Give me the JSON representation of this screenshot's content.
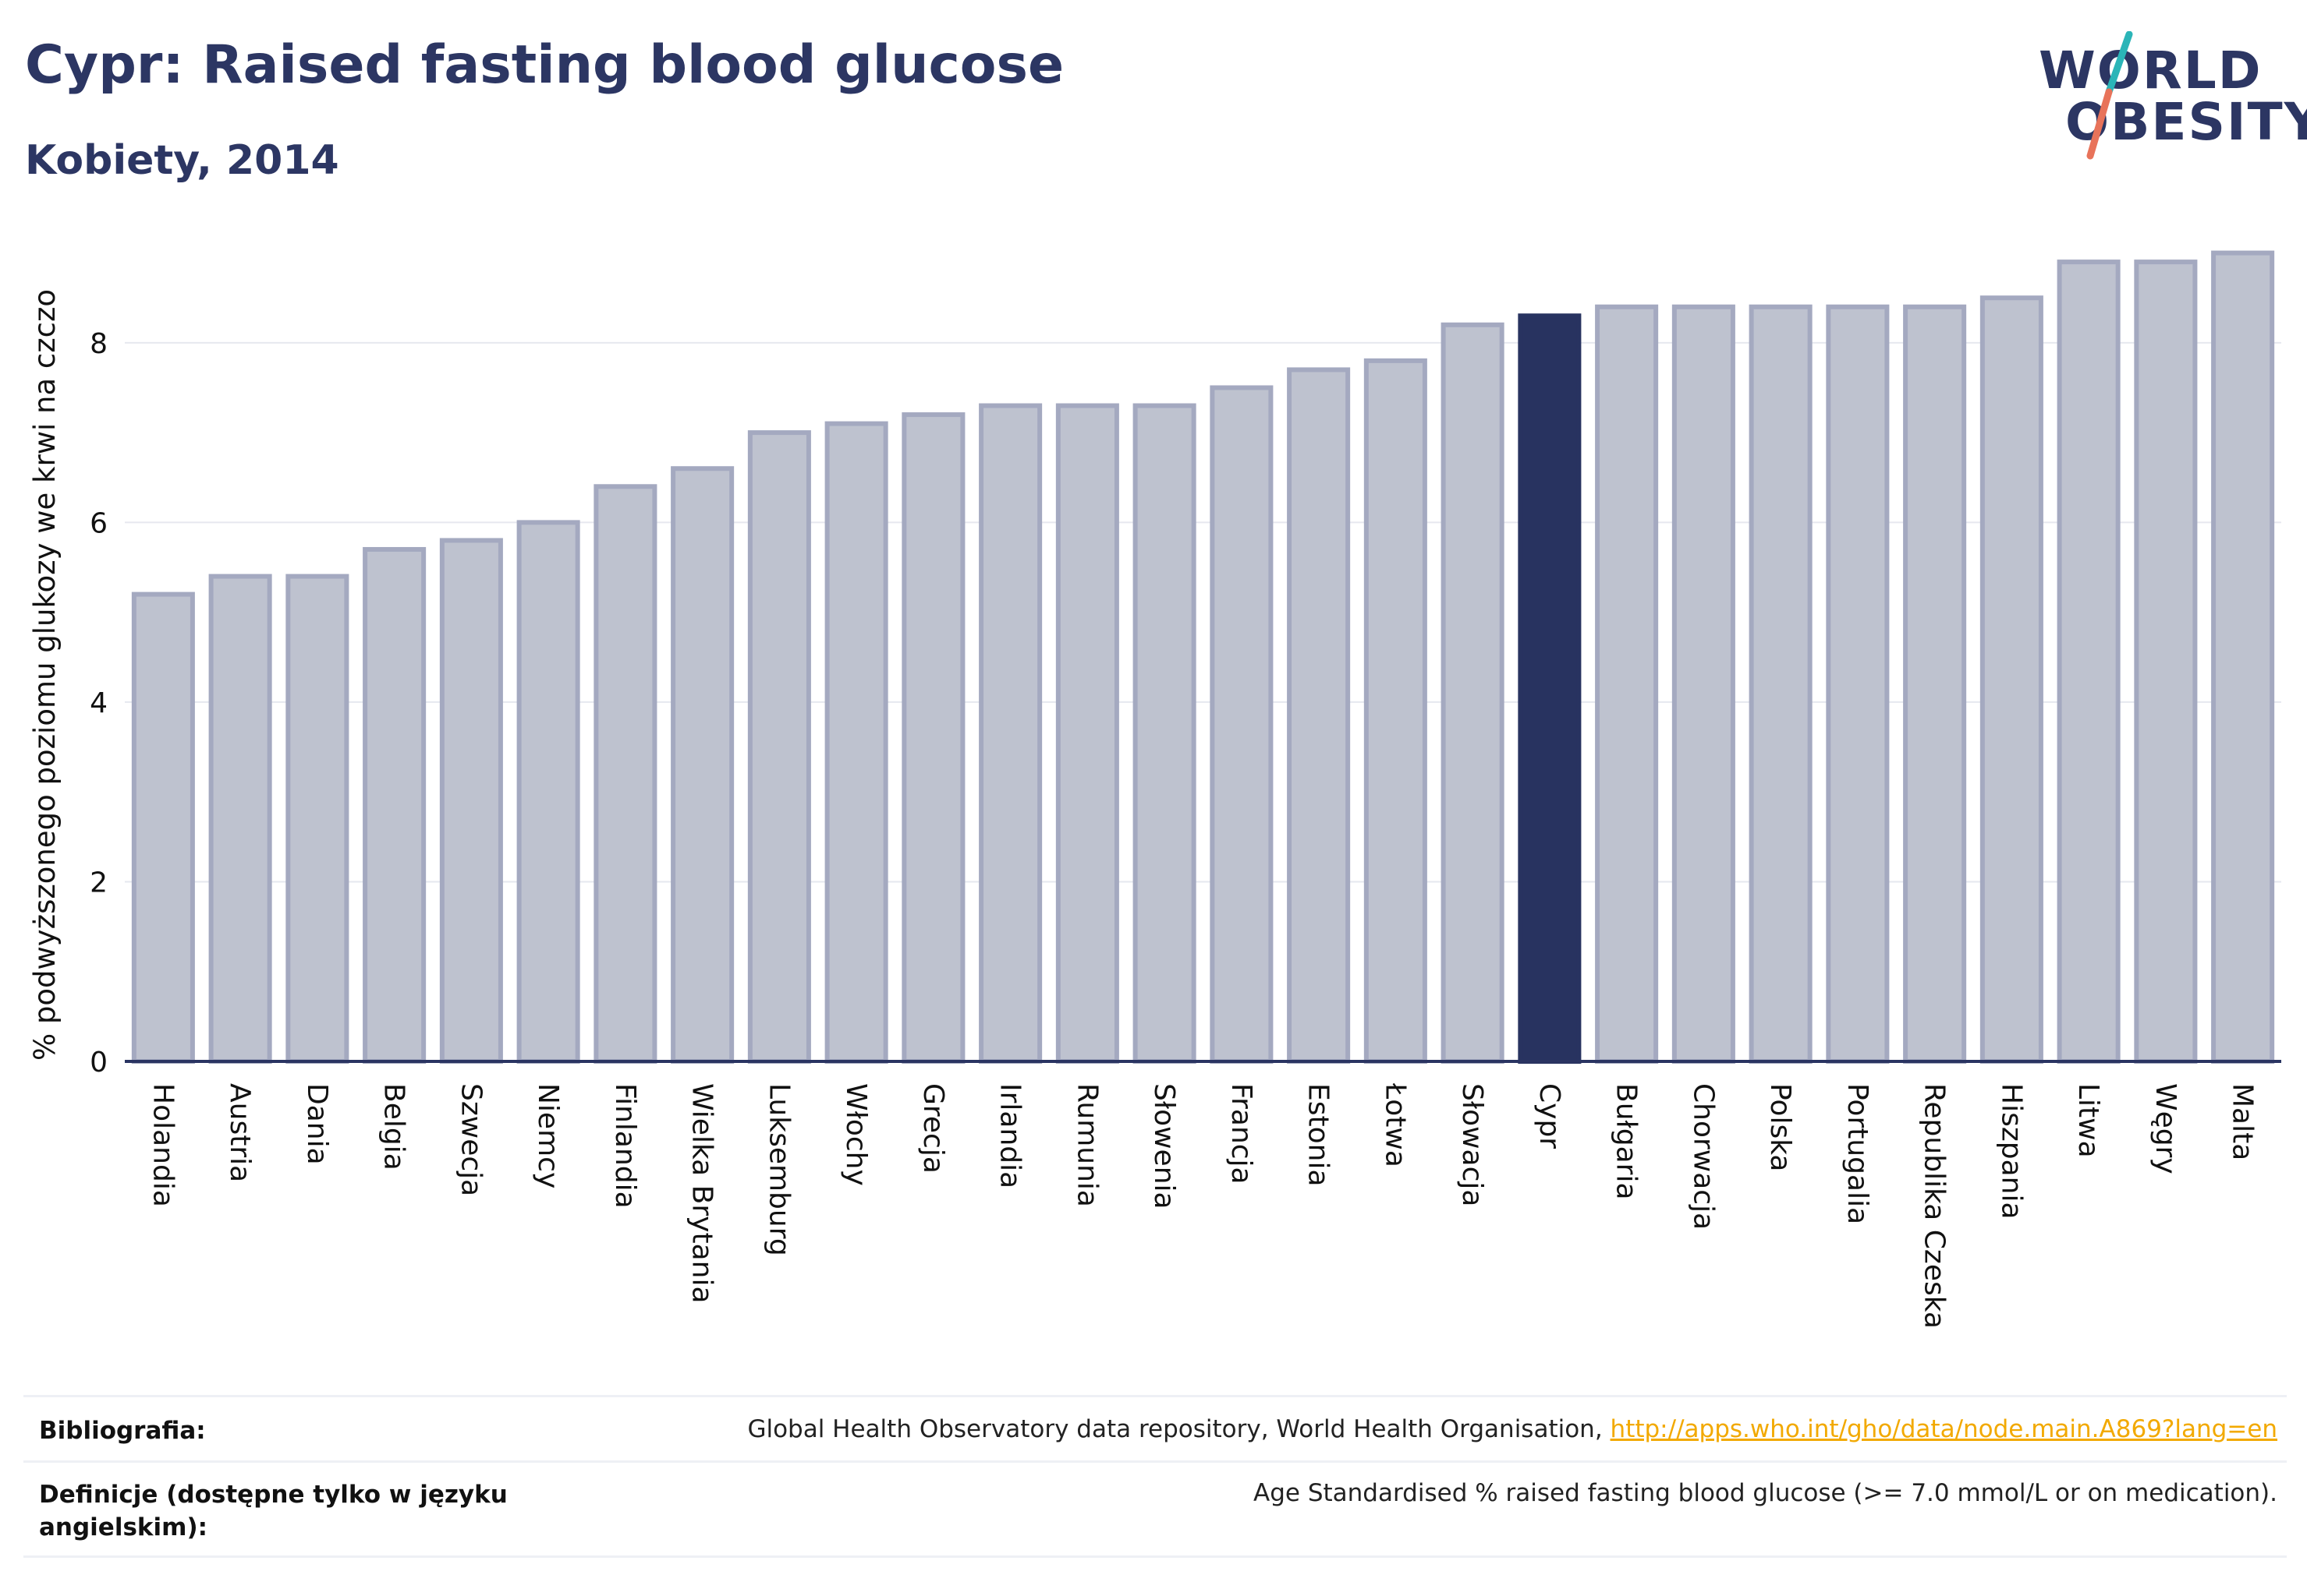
{
  "header": {
    "title": "Cypr: Raised fasting blood glucose",
    "subtitle": "Kobiety, 2014"
  },
  "logo": {
    "line1": "WORLD",
    "line2": "OBESITY",
    "colors": {
      "navy": "#2c3663",
      "teal": "#2bb5b8",
      "coral": "#e8735a"
    }
  },
  "chart_data": {
    "type": "bar",
    "ylabel": "% podwyższonego poziomu glukozy we krwi na czczo",
    "xlabel": "",
    "ylim": [
      0,
      9.3
    ],
    "yticks": [
      0,
      2,
      4,
      6,
      8
    ],
    "grid": true,
    "highlight": "Cypr",
    "colors": {
      "bar": "#bec2cf",
      "bar_border": "#a4a9c0",
      "highlight": "#283360",
      "axis": "#2a3462"
    },
    "categories": [
      "Holandia",
      "Austria",
      "Dania",
      "Belgia",
      "Szwecja",
      "Niemcy",
      "Finlandia",
      "Wielka Brytania",
      "Luksemburg",
      "Włochy",
      "Grecja",
      "Irlandia",
      "Rumunia",
      "Słowenia",
      "Francja",
      "Estonia",
      "Łotwa",
      "Słowacja",
      "Cypr",
      "Bułgaria",
      "Chorwacja",
      "Polska",
      "Portugalia",
      "Republika Czeska",
      "Hiszpania",
      "Litwa",
      "Węgry",
      "Malta"
    ],
    "values": [
      5.2,
      5.4,
      5.4,
      5.7,
      5.8,
      6.0,
      6.4,
      6.6,
      7.0,
      7.1,
      7.2,
      7.3,
      7.3,
      7.3,
      7.5,
      7.7,
      7.8,
      8.2,
      8.3,
      8.4,
      8.4,
      8.4,
      8.4,
      8.4,
      8.5,
      8.9,
      8.9,
      9.0
    ]
  },
  "footer": {
    "bibliography_label": "Bibliografia:",
    "bibliography_text": "Global Health Observatory data repository, World Health Organisation, ",
    "bibliography_link": "http://apps.who.int/gho/data/node.main.A869?lang=en",
    "definitions_label": "Definicje (dostępne tylko w języku angielskim):",
    "definitions_text": "Age Standardised % raised fasting blood glucose (>= 7.0 mmol/L or on medication)."
  }
}
